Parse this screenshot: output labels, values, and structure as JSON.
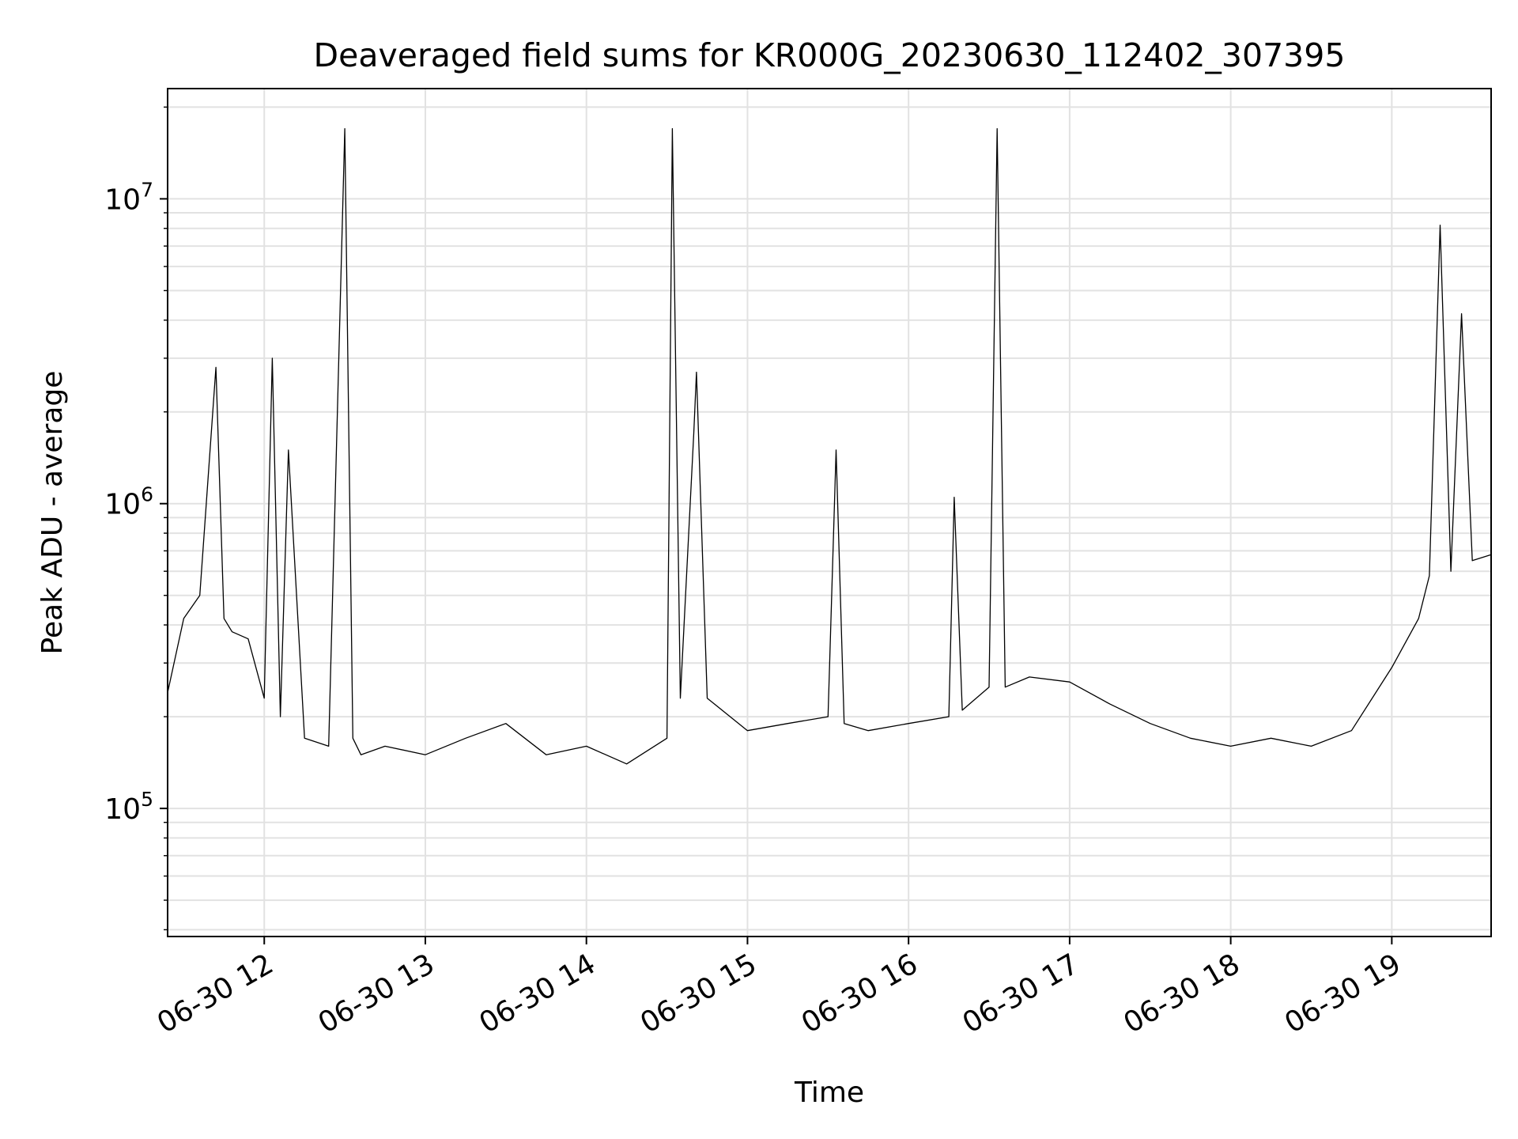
{
  "chart_data": {
    "type": "line",
    "title": "Deaveraged field sums for KR000G_20230630_112402_307395",
    "xlabel": "Time",
    "ylabel": "Peak ADU - average",
    "yscale": "log",
    "ylim": [
      38000,
      23000000
    ],
    "xlim": [
      "2023-06-30T11:24:00",
      "2023-06-30T19:37:00"
    ],
    "xticks": [
      {
        "value": "2023-06-30T12:00",
        "label": "06-30 12"
      },
      {
        "value": "2023-06-30T13:00",
        "label": "06-30 13"
      },
      {
        "value": "2023-06-30T14:00",
        "label": "06-30 14"
      },
      {
        "value": "2023-06-30T15:00",
        "label": "06-30 15"
      },
      {
        "value": "2023-06-30T16:00",
        "label": "06-30 16"
      },
      {
        "value": "2023-06-30T17:00",
        "label": "06-30 17"
      },
      {
        "value": "2023-06-30T18:00",
        "label": "06-30 18"
      },
      {
        "value": "2023-06-30T19:00",
        "label": "06-30 19"
      }
    ],
    "yticks": [
      {
        "value": 100000,
        "base": "10",
        "exp": "5"
      },
      {
        "value": 1000000,
        "base": "10",
        "exp": "6"
      },
      {
        "value": 10000000,
        "base": "10",
        "exp": "7"
      }
    ],
    "grid": true,
    "line_color": "#000000",
    "series": [
      {
        "x": [
          "2023-06-30T11:24",
          "2023-06-30T11:30",
          "2023-06-30T11:36",
          "2023-06-30T11:42",
          "2023-06-30T11:45",
          "2023-06-30T11:48",
          "2023-06-30T11:54",
          "2023-06-30T12:00",
          "2023-06-30T12:03",
          "2023-06-30T12:06",
          "2023-06-30T12:09",
          "2023-06-30T12:15",
          "2023-06-30T12:24",
          "2023-06-30T12:30",
          "2023-06-30T12:33",
          "2023-06-30T12:36",
          "2023-06-30T12:45",
          "2023-06-30T13:00",
          "2023-06-30T13:15",
          "2023-06-30T13:30",
          "2023-06-30T13:45",
          "2023-06-30T14:00",
          "2023-06-30T14:15",
          "2023-06-30T14:30",
          "2023-06-30T14:32",
          "2023-06-30T14:35",
          "2023-06-30T14:40",
          "2023-06-30T14:41",
          "2023-06-30T14:45",
          "2023-06-30T15:00",
          "2023-06-30T15:15",
          "2023-06-30T15:30",
          "2023-06-30T15:33",
          "2023-06-30T15:36",
          "2023-06-30T15:45",
          "2023-06-30T16:00",
          "2023-06-30T16:15",
          "2023-06-30T16:17",
          "2023-06-30T16:20",
          "2023-06-30T16:30",
          "2023-06-30T16:33",
          "2023-06-30T16:36",
          "2023-06-30T16:45",
          "2023-06-30T17:00",
          "2023-06-30T17:15",
          "2023-06-30T17:30",
          "2023-06-30T17:45",
          "2023-06-30T18:00",
          "2023-06-30T18:15",
          "2023-06-30T18:30",
          "2023-06-30T18:45",
          "2023-06-30T19:00",
          "2023-06-30T19:10",
          "2023-06-30T19:14",
          "2023-06-30T19:18",
          "2023-06-30T19:22",
          "2023-06-30T19:26",
          "2023-06-30T19:30",
          "2023-06-30T19:37"
        ],
        "values": [
          240000,
          420000,
          500000,
          2800000,
          420000,
          380000,
          360000,
          230000,
          3000000,
          200000,
          1500000,
          170000,
          160000,
          17000000,
          170000,
          150000,
          160000,
          150000,
          170000,
          190000,
          150000,
          160000,
          140000,
          170000,
          17000000,
          230000,
          1700000,
          2700000,
          230000,
          180000,
          190000,
          200000,
          1500000,
          190000,
          180000,
          190000,
          200000,
          1050000,
          210000,
          250000,
          17000000,
          250000,
          270000,
          260000,
          220000,
          190000,
          170000,
          160000,
          170000,
          160000,
          180000,
          290000,
          420000,
          580000,
          8200000,
          600000,
          4200000,
          650000,
          680000
        ]
      }
    ]
  }
}
